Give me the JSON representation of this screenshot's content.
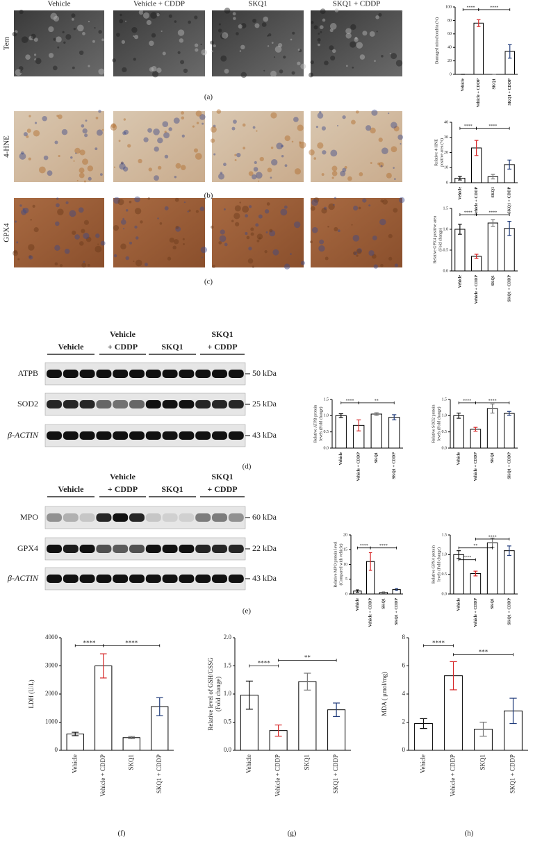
{
  "figure": {
    "image_columns": [
      "Vehicle",
      "Vehicle + CDDP",
      "SKQ1",
      "SKQ1 + CDDP"
    ],
    "image_rows": [
      "Tem",
      "4-HNE",
      "GPX4"
    ],
    "panel_labels": [
      "(a)",
      "(b)",
      "(c)",
      "(d)",
      "(e)",
      "(f)",
      "(g)",
      "(h)"
    ],
    "blots": [
      {
        "lanes": [
          [
            "Vehicle"
          ],
          [
            "Vehicle",
            "+ CDDP"
          ],
          [
            "SKQ1"
          ],
          [
            "SKQ1",
            "+ CDDP"
          ]
        ],
        "rows": [
          {
            "name": "ATPB",
            "size": "50 kDa"
          },
          {
            "name": "SOD2",
            "size": "25 kDa"
          },
          {
            "name": "β-ACTIN",
            "size": "43 kDa"
          }
        ]
      },
      {
        "lanes": [
          [
            "Vehicle"
          ],
          [
            "Vehicle",
            "+ CDDP"
          ],
          [
            "SKQ1"
          ],
          [
            "SKQ1",
            "+ CDDP"
          ]
        ],
        "rows": [
          {
            "name": "MPO",
            "size": "60 kDa"
          },
          {
            "name": "GPX4",
            "size": "22 kDa"
          },
          {
            "name": "β-ACTIN",
            "size": "43 kDa"
          }
        ]
      }
    ]
  },
  "chart_data": [
    {
      "type": "bar",
      "ylabel": [
        "Damaged mitochondria (%)"
      ],
      "categories": [
        "Vehicle",
        "Vehicle + CDDP",
        "SKQ1",
        "SKQ1 + CDDP"
      ],
      "values": [
        0,
        76,
        0,
        34
      ],
      "errors": [
        0,
        5,
        0,
        10
      ],
      "colors": [
        "#111111",
        "#d62728",
        "#777777",
        "#1f3a7a"
      ],
      "ylim": [
        0,
        100
      ],
      "yticks": [
        0,
        20,
        40,
        60,
        80,
        100
      ],
      "annotations": [
        "****",
        "****"
      ]
    },
    {
      "type": "bar",
      "ylabel": [
        "Relative 4-HNE",
        "positive area (%)"
      ],
      "categories": [
        "Vehicle",
        "Vehicle + CDDP",
        "SKQ1",
        "SKQ1 + CDDP"
      ],
      "values": [
        3,
        23,
        4,
        12
      ],
      "errors": [
        1.2,
        5,
        1.5,
        3
      ],
      "colors": [
        "#111111",
        "#d62728",
        "#777777",
        "#1f3a7a"
      ],
      "ylim": [
        0,
        40
      ],
      "yticks": [
        0,
        10,
        20,
        30,
        40
      ],
      "annotations": [
        "****",
        "****"
      ]
    },
    {
      "type": "bar",
      "ylabel": [
        "Relative GPX4 positive area",
        "(Fold change)"
      ],
      "categories": [
        "Vehicle",
        "Vehicle + CDDP",
        "SKQ1",
        "SKQ1 + CDDP"
      ],
      "values": [
        1.0,
        0.35,
        1.15,
        1.02
      ],
      "errors": [
        0.12,
        0.05,
        0.08,
        0.17
      ],
      "colors": [
        "#111111",
        "#d62728",
        "#777777",
        "#1f3a7a"
      ],
      "ylim": [
        0,
        1.5
      ],
      "yticks": [
        {
          "value": 0,
          "label": "0.0"
        },
        {
          "value": 0.5,
          "label": "0.5"
        },
        {
          "value": 1,
          "label": "1.0"
        },
        {
          "value": 1.5,
          "label": "1.5"
        }
      ],
      "annotations": [
        "****",
        "****"
      ]
    },
    {
      "type": "bar",
      "ylabel": [
        "Relative ATPB protein",
        "levels (Fold change)"
      ],
      "categories": [
        "Vehicle",
        "Vehicle + CDDP",
        "SKQ1",
        "SKQ1 + CDDP"
      ],
      "values": [
        1.0,
        0.7,
        1.05,
        0.95
      ],
      "errors": [
        0.06,
        0.17,
        0.04,
        0.08
      ],
      "colors": [
        "#111111",
        "#d62728",
        "#777777",
        "#1f3a7a"
      ],
      "ylim": [
        0,
        1.5
      ],
      "yticks": [
        {
          "value": 0,
          "label": "0.0"
        },
        {
          "value": 0.5,
          "label": "0.5"
        },
        {
          "value": 1,
          "label": "1.0"
        },
        {
          "value": 1.5,
          "label": "1.5"
        }
      ],
      "annotations": [
        "****",
        "**"
      ]
    },
    {
      "type": "bar",
      "ylabel": [
        "Relative SOD2 protein",
        "levels (Fold change)"
      ],
      "categories": [
        "Vehicle",
        "Vehicle + CDDP",
        "SKQ1",
        "SKQ1 + CDDP"
      ],
      "values": [
        1.0,
        0.58,
        1.22,
        1.07
      ],
      "errors": [
        0.08,
        0.06,
        0.14,
        0.06
      ],
      "colors": [
        "#111111",
        "#d62728",
        "#777777",
        "#1f3a7a"
      ],
      "ylim": [
        0,
        1.5
      ],
      "yticks": [
        {
          "value": 0,
          "label": "0.0"
        },
        {
          "value": 0.5,
          "label": "0.5"
        },
        {
          "value": 1,
          "label": "1.0"
        },
        {
          "value": 1.5,
          "label": "1.5"
        }
      ],
      "annotations": [
        "****",
        "****"
      ]
    },
    {
      "type": "bar",
      "ylabel": [
        "Relative MPO protein level",
        "(Compared with vehicle)"
      ],
      "categories": [
        "Vehicle",
        "Vehicle + CDDP",
        "SKQ1",
        "SKQ1 + CDDP"
      ],
      "values": [
        1.0,
        11,
        0.5,
        1.5
      ],
      "errors": [
        0.4,
        3,
        0.2,
        0.3
      ],
      "colors": [
        "#111111",
        "#d62728",
        "#777777",
        "#1f3a7a"
      ],
      "ylim": [
        0,
        20
      ],
      "yticks": [
        0,
        5,
        10,
        15,
        20
      ],
      "annotations": [
        "****",
        "****"
      ]
    },
    {
      "type": "bar",
      "ylabel": [
        "Relative GPX4 protein",
        "levels (Fold change)"
      ],
      "categories": [
        "Vehicle",
        "Vehicle + CDDP",
        "SKQ1",
        "SKQ1 + CDDP"
      ],
      "values": [
        1.0,
        0.52,
        1.3,
        1.1
      ],
      "errors": [
        0.1,
        0.06,
        0.12,
        0.12
      ],
      "colors": [
        "#111111",
        "#d62728",
        "#777777",
        "#1f3a7a"
      ],
      "ylim": [
        0,
        1.5
      ],
      "yticks": [
        {
          "value": 0,
          "label": "0.0"
        },
        {
          "value": 0.5,
          "label": "0.5"
        },
        {
          "value": 1,
          "label": "1.0"
        },
        {
          "value": 1.5,
          "label": "1.5"
        }
      ],
      "annotations": [
        "****",
        "**",
        "****"
      ]
    },
    {
      "type": "bar",
      "ylabel": [
        "LDH (U/L)"
      ],
      "categories": [
        "Vehicle",
        "Vehicle + CDDP",
        "SKQ1",
        "SKQ1 + CDDP"
      ],
      "values": [
        580,
        3000,
        450,
        1550
      ],
      "errors": [
        60,
        430,
        40,
        320
      ],
      "colors": [
        "#111111",
        "#d62728",
        "#777777",
        "#1f3a7a"
      ],
      "ylim": [
        0,
        4000
      ],
      "yticks": [
        0,
        1000,
        2000,
        3000,
        4000
      ],
      "annotations": [
        "****",
        "****"
      ]
    },
    {
      "type": "bar",
      "ylabel": [
        "Relative level of GSH/GSSG",
        "(Fold change)"
      ],
      "categories": [
        "Vehicle",
        "Vehicle + CDDP",
        "SKQ1",
        "SKQ1 + CDDP"
      ],
      "values": [
        0.98,
        0.35,
        1.22,
        0.72
      ],
      "errors": [
        0.25,
        0.1,
        0.15,
        0.12
      ],
      "colors": [
        "#111111",
        "#d62728",
        "#777777",
        "#1f3a7a"
      ],
      "ylim": [
        0,
        2
      ],
      "yticks": [
        {
          "value": 0,
          "label": "0.0"
        },
        {
          "value": 0.5,
          "label": "0.5"
        },
        {
          "value": 1,
          "label": "1.0"
        },
        {
          "value": 1.5,
          "label": "1.5"
        },
        {
          "value": 2,
          "label": "2.0"
        }
      ],
      "annotations": [
        "****",
        "**"
      ]
    },
    {
      "type": "bar",
      "ylabel": [
        "MDA ( μmol/mg)"
      ],
      "categories": [
        "Vehicle",
        "Vehicle + CDDP",
        "SKQ1",
        "SKQ1 + CDDP"
      ],
      "values": [
        1.9,
        5.3,
        1.5,
        2.8
      ],
      "errors": [
        0.35,
        1.0,
        0.5,
        0.9
      ],
      "colors": [
        "#111111",
        "#d62728",
        "#777777",
        "#1f3a7a"
      ],
      "ylim": [
        0,
        8
      ],
      "yticks": [
        0,
        2,
        4,
        6,
        8
      ],
      "annotations": [
        "****",
        "***"
      ]
    }
  ]
}
